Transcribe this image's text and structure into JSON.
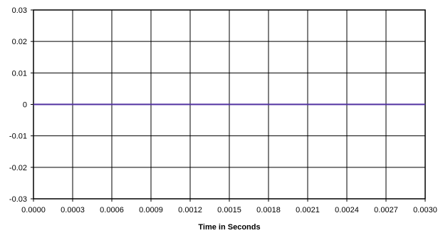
{
  "chart_data": {
    "type": "line",
    "title": "",
    "xlabel": "Time in Seconds",
    "ylabel": "",
    "xlim": [
      0,
      0.003
    ],
    "ylim": [
      -0.03,
      0.03
    ],
    "x_ticks": [
      "0.0000",
      "0.0003",
      "0.0006",
      "0.0009",
      "0.0012",
      "0.0015",
      "0.0018",
      "0.0021",
      "0.0024",
      "0.0027",
      "0.0030"
    ],
    "y_ticks": [
      "0.03",
      "0.02",
      "0.01",
      "0",
      "-0.01",
      "-0.02",
      "-0.03"
    ],
    "y_tick_values": [
      0.03,
      0.02,
      0.01,
      0,
      -0.01,
      -0.02,
      -0.03
    ],
    "grid": true,
    "series": [
      {
        "color": "#5030A0",
        "x": [
          0,
          0.0003,
          0.0006,
          0.0009,
          0.0012,
          0.0015,
          0.0018,
          0.0021,
          0.0024,
          0.0027,
          0.003
        ],
        "y": [
          0,
          0,
          0,
          0,
          0,
          0,
          0,
          0,
          0,
          0,
          0
        ]
      }
    ]
  }
}
